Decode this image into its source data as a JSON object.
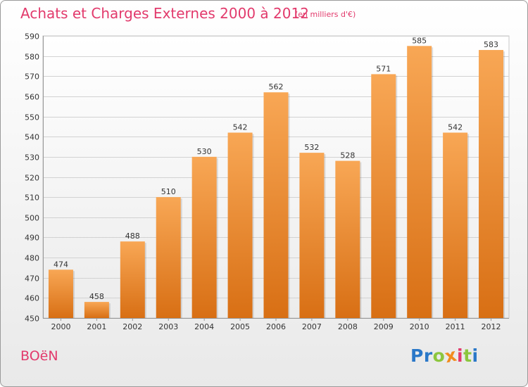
{
  "chart_data": {
    "type": "bar",
    "title": "Achats et Charges Externes 2000 à 2012",
    "subtitle": "(en milliers d'€)",
    "xlabel": "",
    "ylabel": "",
    "categories": [
      "2000",
      "2001",
      "2002",
      "2003",
      "2004",
      "2005",
      "2006",
      "2007",
      "2008",
      "2009",
      "2010",
      "2011",
      "2012"
    ],
    "values": [
      474,
      458,
      488,
      510,
      530,
      542,
      562,
      532,
      528,
      571,
      585,
      542,
      583
    ],
    "ylim": [
      450,
      590
    ],
    "yticks": [
      450,
      460,
      470,
      480,
      490,
      500,
      510,
      520,
      530,
      540,
      550,
      560,
      570,
      580,
      590
    ],
    "grid": true,
    "legend": "none",
    "bar_color_top": "#f8a755",
    "bar_color_bottom": "#d86f14"
  },
  "footer": {
    "place_name": "BOëN",
    "logo_letters": [
      {
        "char": "P",
        "color": "#2a78c8"
      },
      {
        "char": "r",
        "color": "#2a78c8"
      },
      {
        "char": "o",
        "color": "#8cc63e"
      },
      {
        "char": "x",
        "color": "#f28c1e"
      },
      {
        "char": "i",
        "color": "#e23a6c"
      },
      {
        "char": "t",
        "color": "#8cc63e"
      },
      {
        "char": "i",
        "color": "#2a78c8"
      }
    ]
  }
}
